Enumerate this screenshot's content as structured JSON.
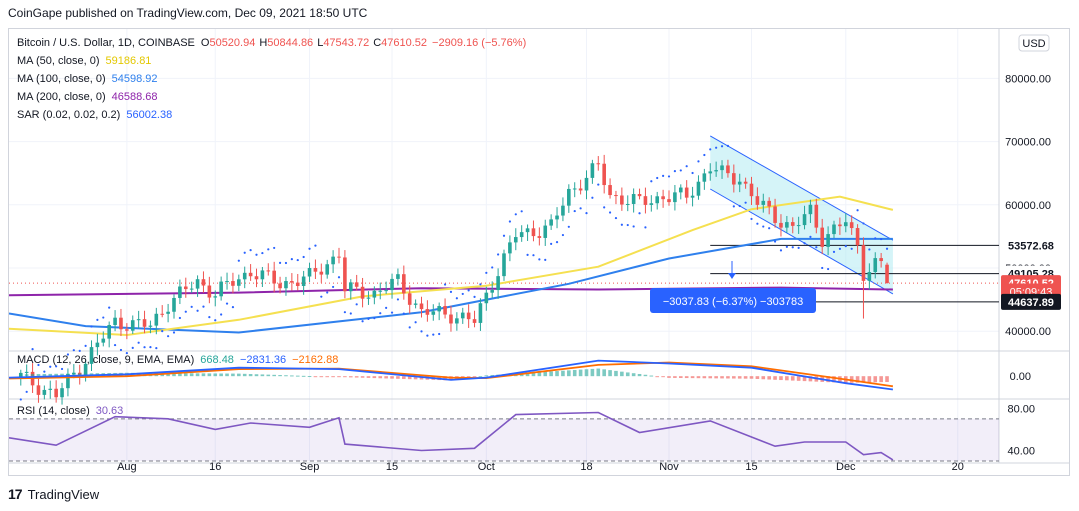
{
  "header": {
    "publisher_line": "CoinGape published on TradingView.com, Dec 09, 2021 18:50 UTC"
  },
  "footer": {
    "brand": "TradingView",
    "logo": "17"
  },
  "currency_button": "USD",
  "legend": {
    "symbol": "Bitcoin / U.S. Dollar, 1D, COINBASE",
    "o_label": "O",
    "o_value": "50520.94",
    "h_label": "H",
    "h_value": "50844.86",
    "l_label": "L",
    "l_value": "47543.72",
    "c_label": "C",
    "c_value": "47610.52",
    "change": "−2909.16 (−5.76%)",
    "ma50_label": "MA (50, close, 0)",
    "ma50_value": "59186.81",
    "ma100_label": "MA (100, close, 0)",
    "ma100_value": "54598.92",
    "ma200_label": "MA (200, close, 0)",
    "ma200_value": "46588.68",
    "sar_label": "SAR (0.02, 0.02, 0.2)",
    "sar_value": "56002.38",
    "macd_label": "MACD (12, 26, close, 9, EMA, EMA)",
    "macd_v1": "668.48",
    "macd_v2": "−2831.36",
    "macd_v3": "−2162.88",
    "rsi_label": "RSI (14, close)",
    "rsi_value": "30.63"
  },
  "measure_label": "−3037.83 (−6.37%) −303783",
  "price_tags": [
    {
      "text": "53572.68",
      "price": 53572.68,
      "bg": "#ffffff",
      "fg": "#131722",
      "bold": true
    },
    {
      "text": "49105.28",
      "price": 49105.28,
      "bg": "#ffffff",
      "fg": "#131722",
      "bold": true
    },
    {
      "text": "47610.52",
      "price": 47610.52,
      "bg": "#ef5350",
      "fg": "#ffffff",
      "bold": true
    },
    {
      "text": "05:09:43",
      "price": 46290,
      "bg": "#ef5350",
      "fg": "#ffffff",
      "bold": false
    },
    {
      "text": "44637.89",
      "price": 44637.89,
      "bg": "#131722",
      "fg": "#ffffff",
      "bold": true
    }
  ],
  "colors": {
    "up": "#26a69a",
    "down": "#ef5350",
    "ma50": "#f5e050",
    "ma100": "#2f80ed",
    "ma200": "#8e24aa",
    "sar": "#2962ff",
    "macd": "#2962ff",
    "signal": "#ff6d00",
    "rsi": "#7e57c2",
    "channel_fill": "#b2ebf2",
    "channel_line": "#2962ff"
  },
  "chart_data": [
    {
      "type": "candlestick",
      "title": "Bitcoin / U.S. Dollar, 1D, COINBASE",
      "y_ticks": [
        40000,
        50000,
        60000,
        70000,
        80000
      ],
      "y_tick_labels": [
        "40000.00",
        "50000.00",
        "60000.00",
        "70000.00",
        "80000.00"
      ],
      "x_tick_labels": [
        "Aug",
        "16",
        "Sep",
        "15",
        "Oct",
        "18",
        "Nov",
        "15",
        "Dec",
        "20"
      ],
      "x_tick_dates": [
        "2021-08-01",
        "2021-08-16",
        "2021-09-01",
        "2021-09-15",
        "2021-10-01",
        "2021-10-18",
        "2021-11-01",
        "2021-11-15",
        "2021-12-01",
        "2021-12-20"
      ],
      "ylim": [
        37500,
        87500
      ],
      "xlim": [
        "2021-07-12",
        "2021-12-27"
      ],
      "grid": true,
      "last": {
        "open": 50520.94,
        "high": 50844.86,
        "low": 47543.72,
        "close": 47610.52
      },
      "anchors": [
        [
          "2021-07-14",
          32800
        ],
        [
          "2021-07-20",
          29800
        ],
        [
          "2021-07-25",
          35500
        ],
        [
          "2021-07-30",
          41500
        ],
        [
          "2021-08-05",
          40800
        ],
        [
          "2021-08-08",
          44500
        ],
        [
          "2021-08-13",
          47800
        ],
        [
          "2021-08-16",
          46000
        ],
        [
          "2021-08-22",
          49500
        ],
        [
          "2021-08-27",
          47500
        ],
        [
          "2021-09-01",
          48500
        ],
        [
          "2021-09-06",
          52300
        ],
        [
          "2021-09-07",
          46500
        ],
        [
          "2021-09-12",
          46000
        ],
        [
          "2021-09-16",
          47900
        ],
        [
          "2021-09-20",
          43000
        ],
        [
          "2021-09-25",
          42700
        ],
        [
          "2021-09-29",
          41500
        ],
        [
          "2021-10-02",
          47800
        ],
        [
          "2021-10-06",
          55200
        ],
        [
          "2021-10-12",
          56500
        ],
        [
          "2021-10-15",
          62000
        ],
        [
          "2021-10-20",
          66000
        ],
        [
          "2021-10-22",
          61500
        ],
        [
          "2021-10-27",
          60300
        ],
        [
          "2021-10-31",
          61300
        ],
        [
          "2021-11-04",
          61300
        ],
        [
          "2021-11-08",
          66000
        ],
        [
          "2021-11-10",
          64800
        ],
        [
          "2021-11-13",
          64200
        ],
        [
          "2021-11-16",
          60300
        ],
        [
          "2021-11-19",
          58100
        ],
        [
          "2021-11-22",
          56300
        ],
        [
          "2021-11-25",
          58900
        ],
        [
          "2021-11-27",
          54800
        ],
        [
          "2021-12-01",
          57300
        ],
        [
          "2021-12-03",
          53500
        ],
        [
          "2021-12-04",
          49400
        ],
        [
          "2021-12-06",
          50600
        ],
        [
          "2021-12-07",
          50600
        ],
        [
          "2021-12-08",
          50500
        ]
      ],
      "ma50": [
        [
          "2021-07-12",
          40400
        ],
        [
          "2021-08-01",
          39400
        ],
        [
          "2021-08-20",
          41800
        ],
        [
          "2021-09-10",
          45500
        ],
        [
          "2021-10-01",
          47200
        ],
        [
          "2021-10-20",
          50200
        ],
        [
          "2021-11-05",
          56000
        ],
        [
          "2021-11-15",
          59300
        ],
        [
          "2021-11-30",
          61300
        ],
        [
          "2021-12-09",
          59200
        ]
      ],
      "ma100": [
        [
          "2021-07-12",
          42800
        ],
        [
          "2021-07-25",
          40800
        ],
        [
          "2021-08-20",
          39800
        ],
        [
          "2021-09-20",
          43000
        ],
        [
          "2021-10-15",
          47500
        ],
        [
          "2021-11-01",
          51500
        ],
        [
          "2021-11-20",
          54600
        ],
        [
          "2021-12-09",
          54600
        ]
      ],
      "ma200": [
        [
          "2021-07-12",
          45700
        ],
        [
          "2021-08-20",
          46100
        ],
        [
          "2021-09-20",
          46800
        ],
        [
          "2021-10-20",
          46600
        ],
        [
          "2021-11-20",
          46900
        ],
        [
          "2021-12-09",
          46600
        ]
      ],
      "channel": {
        "upper": [
          [
            "2021-11-08",
            70900
          ],
          [
            "2021-12-09",
            54400
          ]
        ],
        "lower": [
          [
            "2021-11-08",
            62500
          ],
          [
            "2021-12-09",
            45900
          ]
        ]
      },
      "horizontal_levels": [
        {
          "price": 53572.68,
          "from": "2021-11-08",
          "to": "2021-12-20"
        },
        {
          "price": 49105.28,
          "from": "2021-11-08",
          "to": "2021-12-20"
        },
        {
          "price": 44637.89,
          "from": "2021-11-08",
          "to": "2021-12-20"
        }
      ]
    },
    {
      "type": "line",
      "title": "MACD (12, 26, close, 9, EMA, EMA)",
      "y_ticks": [
        0
      ],
      "y_tick_labels": [
        "0.00"
      ],
      "ylim": [
        -4000,
        4500
      ],
      "series": [
        {
          "name": "MACD",
          "values": [
            [
              "2021-07-12",
              -300
            ],
            [
              "2021-08-01",
              400
            ],
            [
              "2021-08-20",
              1800
            ],
            [
              "2021-09-06",
              1500
            ],
            [
              "2021-09-25",
              -800
            ],
            [
              "2021-10-01",
              -300
            ],
            [
              "2021-10-20",
              3300
            ],
            [
              "2021-11-01",
              2700
            ],
            [
              "2021-11-15",
              1800
            ],
            [
              "2021-12-01",
              -1500
            ],
            [
              "2021-12-09",
              -2830
            ]
          ]
        },
        {
          "name": "Signal",
          "values": [
            [
              "2021-07-12",
              -500
            ],
            [
              "2021-08-01",
              0
            ],
            [
              "2021-08-20",
              1500
            ],
            [
              "2021-09-06",
              1600
            ],
            [
              "2021-09-25",
              -300
            ],
            [
              "2021-10-01",
              -400
            ],
            [
              "2021-10-20",
              2400
            ],
            [
              "2021-11-01",
              2900
            ],
            [
              "2021-11-15",
              2100
            ],
            [
              "2021-12-01",
              -700
            ],
            [
              "2021-12-09",
              -2160
            ]
          ]
        }
      ]
    },
    {
      "type": "line",
      "title": "RSI (14, close)",
      "y_ticks": [
        40,
        80
      ],
      "y_tick_labels": [
        "40.00",
        "80.00"
      ],
      "ylim": [
        30,
        85
      ],
      "bands": [
        30,
        70
      ],
      "series": [
        {
          "name": "RSI",
          "values": [
            [
              "2021-07-12",
              52
            ],
            [
              "2021-07-20",
              45
            ],
            [
              "2021-07-30",
              72
            ],
            [
              "2021-08-08",
              70
            ],
            [
              "2021-08-16",
              60
            ],
            [
              "2021-08-22",
              66
            ],
            [
              "2021-09-01",
              62
            ],
            [
              "2021-09-06",
              71
            ],
            [
              "2021-09-07",
              46
            ],
            [
              "2021-09-20",
              40
            ],
            [
              "2021-09-29",
              42
            ],
            [
              "2021-10-06",
              74
            ],
            [
              "2021-10-20",
              76
            ],
            [
              "2021-10-27",
              57
            ],
            [
              "2021-11-08",
              68
            ],
            [
              "2021-11-19",
              44
            ],
            [
              "2021-11-24",
              48
            ],
            [
              "2021-12-01",
              48
            ],
            [
              "2021-12-04",
              36
            ],
            [
              "2021-12-07",
              38
            ],
            [
              "2021-12-09",
              31
            ]
          ]
        }
      ]
    }
  ]
}
